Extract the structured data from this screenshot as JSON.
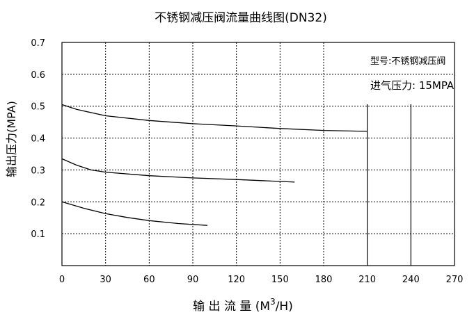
{
  "chart_data": {
    "type": "line",
    "title": "不锈钢减压阀流量曲线图(DN32)",
    "xlabel": "输 出 流 量 (M",
    "xlabel_sup": "3",
    "xlabel_tail": "/H)",
    "ylabel": "输出压力(MPA)",
    "xlim": [
      0,
      270
    ],
    "ylim": [
      0,
      0.7
    ],
    "x_ticks": [
      "0",
      "30",
      "60",
      "90",
      "120",
      "150",
      "180",
      "210",
      "240",
      "270"
    ],
    "y_ticks": [
      "0.1",
      "0.2",
      "0.3",
      "0.4",
      "0.5",
      "0.6",
      "0.7"
    ],
    "grid": true,
    "annotations": [
      "型号:不锈钢减压阀",
      "进气压力: 15MPA"
    ],
    "series": [
      {
        "x": [
          0,
          10,
          30,
          60,
          90,
          120,
          150,
          180,
          210
        ],
        "y": [
          0.505,
          0.49,
          0.47,
          0.455,
          0.445,
          0.438,
          0.43,
          0.424,
          0.421
        ]
      },
      {
        "x": [
          0,
          10,
          20,
          30,
          60,
          90,
          120,
          160
        ],
        "y": [
          0.335,
          0.315,
          0.3,
          0.293,
          0.282,
          0.275,
          0.27,
          0.262
        ]
      },
      {
        "x": [
          0,
          15,
          30,
          45,
          60,
          80,
          100
        ],
        "y": [
          0.2,
          0.18,
          0.163,
          0.151,
          0.141,
          0.132,
          0.126
        ]
      }
    ]
  }
}
